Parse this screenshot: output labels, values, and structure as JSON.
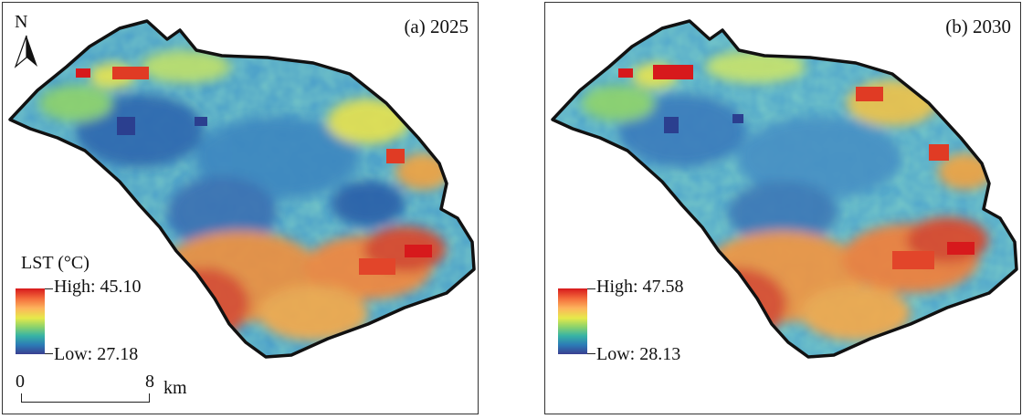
{
  "panels": [
    {
      "title": "(a) 2025",
      "legend": {
        "title": "LST (°C)",
        "high_label": "High: 45.10",
        "low_label": "Low: 27.18"
      },
      "north_label": "N",
      "scale": {
        "zero": "0",
        "max": "8",
        "unit": "km"
      }
    },
    {
      "title": "(b) 2030",
      "legend": {
        "high_label": "High: 47.58",
        "low_label": "Low: 28.13"
      }
    }
  ],
  "colors": {
    "ramp": [
      "#d7191c",
      "#f36b3b",
      "#fdb45c",
      "#e6e94a",
      "#8fd36a",
      "#37b3a5",
      "#2c7bb6",
      "#3a3f91"
    ],
    "boundary": "#111111"
  },
  "icons": [
    "north-arrow-icon"
  ]
}
